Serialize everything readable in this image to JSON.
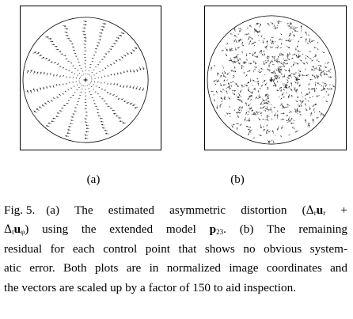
{
  "figure": {
    "panels": [
      {
        "id": "a",
        "label": "(a)"
      },
      {
        "id": "b",
        "label": "(b)"
      }
    ],
    "caption": {
      "fig_label": "Fig. 5.",
      "line1_pre": "(a) The estimated asymmetric distortion (",
      "sym_delta": "Δ",
      "sub_r": "r",
      "sym_u": "u",
      "sub_r2": "r",
      "plus": " +",
      "sym_delta2": "Δ",
      "sub_t": "t",
      "sym_u2": "u",
      "sub_phi": "φ",
      "line2_mid": ") using the extended model ",
      "model_p": "p",
      "model_sub": "23",
      "line2_post": ". (b) The remaining",
      "line3": "residual for each control point that shows no obvious system-",
      "line4": "atic error. Both plots are in normalized image coordinates and",
      "line5": "the vectors are scaled up by a factor of 150 to aid inspection."
    },
    "vector_scale_factor": 150
  }
}
